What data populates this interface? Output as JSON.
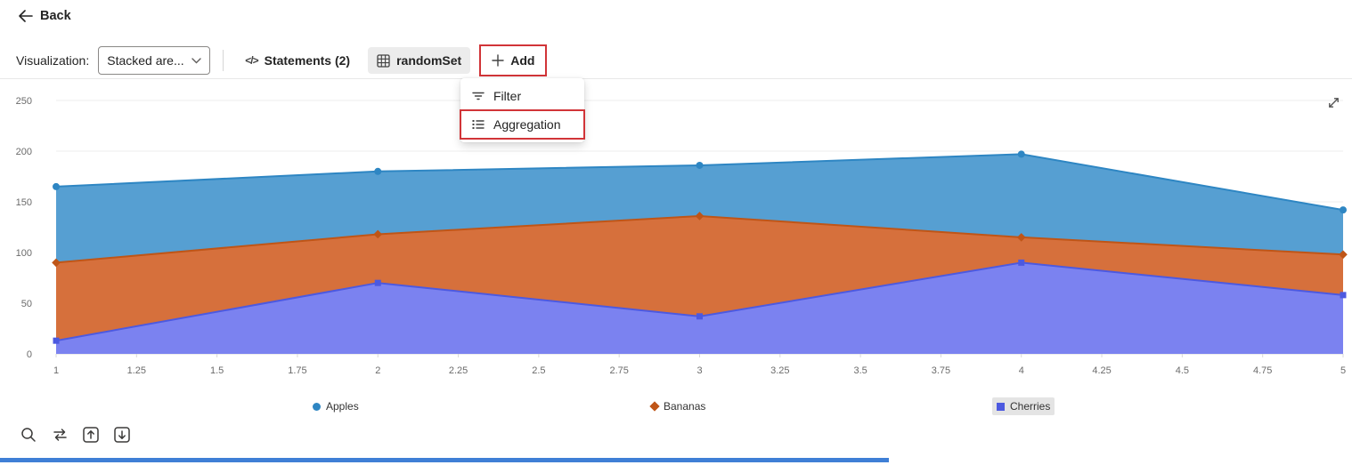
{
  "header": {
    "back_label": "Back"
  },
  "toolbar": {
    "visualization_label": "Visualization:",
    "visualization_value": "Stacked are...",
    "statements_label": "Statements (2)",
    "dataset_label": "randomSet",
    "add_label": "Add"
  },
  "add_menu": {
    "items": [
      {
        "label": "Filter",
        "icon": "filter-icon",
        "highlighted": false
      },
      {
        "label": "Aggregation",
        "icon": "aggregation-icon",
        "highlighted": true
      }
    ]
  },
  "chart_data": {
    "type": "area",
    "stacked": true,
    "title": "",
    "xlabel": "",
    "ylabel": "",
    "x": [
      1,
      2,
      3,
      4,
      5
    ],
    "series": [
      {
        "name": "Cherries",
        "values": [
          13,
          70,
          37,
          90,
          58
        ],
        "fill": "#7b82f0",
        "stroke": "#4c59e0",
        "marker": "square"
      },
      {
        "name": "Bananas",
        "values": [
          77,
          48,
          99,
          25,
          40
        ],
        "fill": "#d6703c",
        "stroke": "#bf5517",
        "marker": "diamond"
      },
      {
        "name": "Apples",
        "values": [
          75,
          62,
          50,
          82,
          44
        ],
        "fill": "#569fd2",
        "stroke": "#2e86c3",
        "marker": "circle"
      }
    ],
    "stack_note": "cumulative top edges: Cherries [13,70,37,90,58]; +Bananas [90,118,136,115,98]; +Apples [165,180,186,197,142]",
    "x_ticks": [
      1,
      1.25,
      1.5,
      1.75,
      2,
      2.25,
      2.5,
      2.75,
      3,
      3.25,
      3.5,
      3.75,
      4,
      4.25,
      4.5,
      4.75,
      5
    ],
    "y_ticks": [
      0,
      50,
      100,
      150,
      200,
      250
    ],
    "ylim": [
      0,
      250
    ],
    "xlim": [
      1,
      5
    ],
    "grid": true,
    "legend_position": "bottom",
    "legend": [
      {
        "label": "Apples",
        "marker": "circle",
        "color": "#2e86c3",
        "highlighted": false
      },
      {
        "label": "Bananas",
        "marker": "diamond",
        "color": "#bf5517",
        "highlighted": false
      },
      {
        "label": "Cherries",
        "marker": "square",
        "color": "#4c59e0",
        "highlighted": true
      }
    ]
  },
  "colors": {
    "highlight_red": "#d13438",
    "scrollbar_blue": "#3f7fd6",
    "pill_grey": "#ececec",
    "legend_highlight_grey": "#e4e4e4"
  }
}
